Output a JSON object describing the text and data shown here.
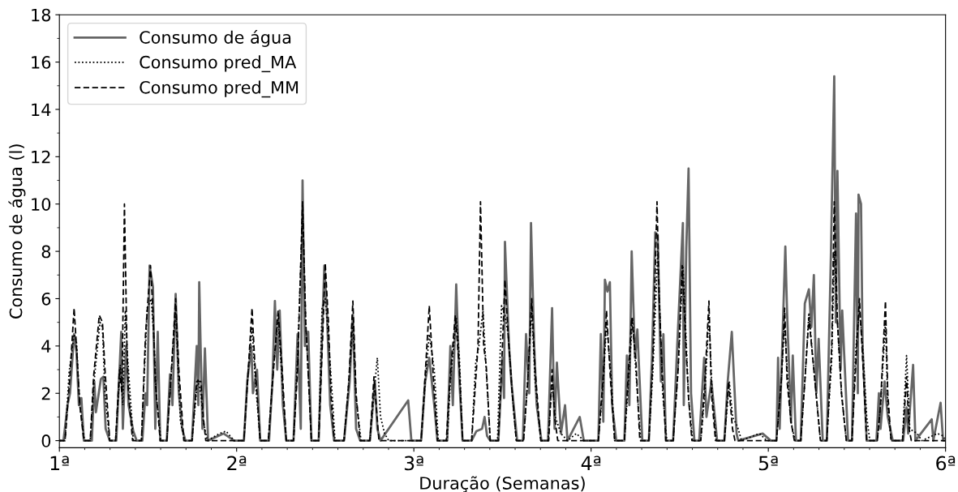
{
  "chart_data": {
    "type": "line",
    "xlabel": "Duração (Semanas)",
    "ylabel": "Consumo de água (l)",
    "xlim": [
      1,
      6
    ],
    "xticks": [
      {
        "value": 1,
        "label": "1ª"
      },
      {
        "value": 2,
        "label": "2ª"
      },
      {
        "value": 3,
        "label": "3ª"
      },
      {
        "value": 4,
        "label": "4ª"
      },
      {
        "value": 5,
        "label": "5ª"
      },
      {
        "value": 6,
        "label": "6ª"
      }
    ],
    "ylim": [
      -0.3,
      18
    ],
    "yticks": [
      0,
      2,
      4,
      6,
      8,
      10,
      12,
      14,
      16,
      18
    ],
    "grid": false,
    "legend": "top left",
    "marker": "none",
    "series": [
      {
        "name": "Consumo de água",
        "color": "#666666",
        "line_style": "solid",
        "x": [
          1.0,
          1.023,
          1.046,
          1.06,
          1.083,
          1.096,
          1.11,
          1.124,
          1.138,
          1.183,
          1.197,
          1.206,
          1.234,
          1.248,
          1.261,
          1.284,
          1.321,
          1.349,
          1.358,
          1.376,
          1.39,
          1.417,
          1.436,
          1.468,
          1.486,
          1.495,
          1.509,
          1.528,
          1.541,
          1.555,
          1.569,
          1.606,
          1.624,
          1.638,
          1.656,
          1.674,
          1.693,
          1.711,
          1.748,
          1.775,
          1.784,
          1.789,
          1.807,
          1.821,
          1.839,
          1.927,
          1.986,
          2.041,
          2.06,
          2.083,
          2.092,
          2.115,
          2.133,
          2.183,
          2.202,
          2.216,
          2.229,
          2.243,
          2.261,
          2.28,
          2.321,
          2.344,
          2.362,
          2.372,
          2.385,
          2.404,
          2.422,
          2.463,
          2.482,
          2.495,
          2.509,
          2.528,
          2.55,
          2.606,
          2.638,
          2.656,
          2.674,
          2.697,
          2.752,
          2.78,
          2.794,
          2.812,
          2.968,
          2.986,
          3.041,
          3.064,
          3.087,
          3.115,
          3.133,
          3.188,
          3.206,
          3.22,
          3.239,
          3.257,
          3.275,
          3.326,
          3.353,
          3.385,
          3.399,
          3.413,
          3.431,
          3.477,
          3.5,
          3.509,
          3.514,
          3.537,
          3.55,
          3.583,
          3.615,
          3.633,
          3.651,
          3.661,
          3.679,
          3.693,
          3.72,
          3.757,
          3.78,
          3.794,
          3.807,
          3.83,
          3.853,
          3.867,
          3.936,
          3.959,
          4.041,
          4.055,
          4.069,
          4.078,
          4.092,
          4.106,
          4.119,
          4.142,
          4.188,
          4.202,
          4.216,
          4.229,
          4.248,
          4.261,
          4.289,
          4.326,
          4.344,
          4.362,
          4.376,
          4.394,
          4.408,
          4.422,
          4.463,
          4.486,
          4.518,
          4.523,
          4.537,
          4.55,
          4.564,
          4.583,
          4.61,
          4.638,
          4.651,
          4.679,
          4.711,
          4.752,
          4.771,
          4.794,
          4.821,
          4.83,
          4.968,
          5.014,
          5.046,
          5.055,
          5.064,
          5.096,
          5.106,
          5.128,
          5.138,
          5.156,
          5.183,
          5.206,
          5.229,
          5.243,
          5.257,
          5.271,
          5.284,
          5.307,
          5.33,
          5.353,
          5.372,
          5.381,
          5.39,
          5.408,
          5.417,
          5.45,
          5.472,
          5.495,
          5.505,
          5.509,
          5.523,
          5.532,
          5.555,
          5.61,
          5.624,
          5.633,
          5.656,
          5.674,
          5.702,
          5.761,
          5.78,
          5.789,
          5.817,
          5.83,
          5.922,
          5.931,
          5.972,
          5.986,
          6.0
        ],
        "values": [
          0,
          0,
          1.5,
          2.0,
          4.5,
          3.8,
          1.5,
          1.8,
          0,
          0,
          2.5,
          1.2,
          2.6,
          2.7,
          0.5,
          0,
          0,
          4.6,
          0.5,
          4.0,
          1.5,
          0.4,
          0,
          0,
          2.0,
          1.5,
          7.4,
          6.5,
          0.5,
          4.6,
          0,
          0,
          2.8,
          1.5,
          6.2,
          2.0,
          0.5,
          0,
          0,
          4.0,
          1.5,
          6.7,
          0.5,
          3.9,
          0,
          0.3,
          0,
          0,
          2.5,
          4.0,
          2.0,
          3.0,
          0,
          0,
          2.5,
          5.9,
          3.0,
          5.5,
          1.5,
          0,
          0,
          4.5,
          0.5,
          11.0,
          4.0,
          4.6,
          0,
          0,
          4.5,
          7.4,
          5.5,
          1.5,
          0,
          0,
          2.5,
          5.3,
          0.5,
          0,
          0,
          2.5,
          0.5,
          0,
          1.7,
          0,
          0,
          2.5,
          3.5,
          1.5,
          0,
          0,
          4.0,
          1.5,
          6.6,
          2.5,
          0,
          0,
          0.4,
          0.5,
          1.0,
          0.2,
          0,
          0,
          3.5,
          1.8,
          8.4,
          4.0,
          2.5,
          0,
          0,
          4.5,
          2.0,
          9.2,
          4.0,
          1.5,
          0,
          0,
          5.6,
          0.5,
          3.3,
          0.3,
          1.5,
          0,
          1.0,
          0,
          0,
          4.5,
          0.8,
          6.8,
          6.3,
          6.7,
          1.5,
          0,
          0,
          3.6,
          1.5,
          8.0,
          3.5,
          4.7,
          0,
          0,
          3.6,
          8.8,
          8.7,
          2.5,
          4.5,
          0,
          0,
          4.0,
          9.2,
          1.5,
          8.1,
          11.5,
          2.0,
          0,
          0,
          3.5,
          1.0,
          2.5,
          0,
          0,
          2.5,
          4.6,
          0.3,
          0,
          0.3,
          0,
          0,
          3.5,
          0.5,
          8.2,
          5.4,
          0.8,
          3.6,
          0,
          0,
          5.8,
          6.4,
          4.8,
          7.0,
          2.0,
          4.3,
          0,
          0,
          7.8,
          15.4,
          5.0,
          11.4,
          3.0,
          5.5,
          0,
          0,
          9.6,
          2.0,
          10.4,
          10.0,
          4.0,
          0,
          0,
          2.0,
          0.5,
          2.5,
          1.0,
          0,
          0,
          1.4,
          0.3,
          3.2,
          0,
          0.9,
          0,
          1.6,
          0,
          0
        ]
      },
      {
        "name": "Consumo pred_MA",
        "color": "#000000",
        "line_style": "dotted",
        "x": [
          1.0,
          1.032,
          1.055,
          1.083,
          1.096,
          1.115,
          1.142,
          1.174,
          1.197,
          1.229,
          1.243,
          1.257,
          1.284,
          1.317,
          1.344,
          1.358,
          1.372,
          1.385,
          1.417,
          1.463,
          1.495,
          1.518,
          1.532,
          1.546,
          1.573,
          1.606,
          1.628,
          1.656,
          1.67,
          1.683,
          1.706,
          1.748,
          1.78,
          1.798,
          1.812,
          1.835,
          1.904,
          1.94,
          1.963,
          1.986,
          2.041,
          2.064,
          2.087,
          2.106,
          2.133,
          2.179,
          2.206,
          2.234,
          2.257,
          2.28,
          2.321,
          2.344,
          2.372,
          2.39,
          2.422,
          2.463,
          2.482,
          2.5,
          2.514,
          2.537,
          2.555,
          2.606,
          2.628,
          2.656,
          2.674,
          2.702,
          2.752,
          2.775,
          2.794,
          2.812,
          2.835,
          2.858,
          3.041,
          3.064,
          3.087,
          3.115,
          3.138,
          3.188,
          3.206,
          3.239,
          3.257,
          3.275,
          3.326,
          3.349,
          3.367,
          3.39,
          3.408,
          3.431,
          3.472,
          3.495,
          3.514,
          3.532,
          3.56,
          3.578,
          3.619,
          3.642,
          3.665,
          3.684,
          3.716,
          3.757,
          3.78,
          3.798,
          3.83,
          3.867,
          3.917,
          3.959,
          4.041,
          4.069,
          4.087,
          4.115,
          4.133,
          4.188,
          4.211,
          4.234,
          4.252,
          4.28,
          4.326,
          4.349,
          4.376,
          4.39,
          4.404,
          4.427,
          4.463,
          4.491,
          4.518,
          4.532,
          4.55,
          4.573,
          4.619,
          4.642,
          4.665,
          4.683,
          4.706,
          4.752,
          4.78,
          4.798,
          4.826,
          4.849,
          4.95,
          4.991,
          5.046,
          5.073,
          5.092,
          5.106,
          5.128,
          5.151,
          5.183,
          5.206,
          5.229,
          5.257,
          5.294,
          5.33,
          5.358,
          5.372,
          5.39,
          5.413,
          5.44,
          5.472,
          5.495,
          5.514,
          5.532,
          5.555,
          5.573,
          5.615,
          5.633,
          5.661,
          5.674,
          5.693,
          5.757,
          5.78,
          5.798,
          5.839,
          5.867,
          5.954,
          5.986,
          6.0
        ],
        "values": [
          0,
          0,
          2.9,
          4.5,
          4.2,
          1.5,
          0,
          0,
          2.6,
          5.0,
          4.8,
          2.0,
          0,
          0,
          3.2,
          1.5,
          5.5,
          3.5,
          0,
          0,
          5.6,
          6.0,
          4.5,
          2.0,
          0,
          0,
          2.5,
          5.6,
          3.0,
          0.8,
          0,
          0,
          2.6,
          2.0,
          0.8,
          0,
          0.3,
          0.4,
          0.2,
          0,
          0,
          2.8,
          4.8,
          2.5,
          0,
          0,
          2.9,
          5.2,
          2.5,
          0,
          0,
          3.5,
          9.7,
          5.0,
          0,
          0,
          5.6,
          6.0,
          4.8,
          2.2,
          0,
          0,
          2.0,
          5.0,
          1.8,
          0,
          0,
          2.0,
          3.5,
          1.0,
          0.3,
          0,
          0,
          2.5,
          4.5,
          3.0,
          0,
          0,
          2.5,
          5.2,
          3.5,
          0,
          0,
          3.3,
          4.0,
          5.5,
          3.0,
          0,
          0,
          5.7,
          5.3,
          4.5,
          1.5,
          0,
          0,
          2.5,
          5.6,
          2.5,
          0,
          0,
          2.5,
          1.0,
          0.3,
          0,
          0.3,
          0,
          0,
          2.5,
          5.0,
          2.5,
          0,
          0,
          2.5,
          5.2,
          3.0,
          0,
          0,
          3.0,
          8.0,
          5.0,
          2.0,
          0,
          0,
          3.0,
          7.4,
          5.0,
          1.8,
          0,
          0,
          2.0,
          5.3,
          2.0,
          0,
          0,
          2.5,
          1.0,
          0.6,
          0,
          0.3,
          0,
          0,
          2.5,
          5.0,
          3.0,
          0.8,
          0,
          0,
          2.5,
          5.4,
          3.0,
          0,
          0,
          3.5,
          8.0,
          5.0,
          2.0,
          0,
          0,
          4.0,
          5.5,
          4.0,
          1.0,
          0,
          0,
          1.5,
          5.0,
          1.5,
          0,
          0,
          3.6,
          0.5,
          0.3,
          0,
          0.3,
          0.2,
          0
        ]
      },
      {
        "name": "Consumo pred_MM",
        "color": "#000000",
        "line_style": "dashed",
        "x": [
          1.0,
          1.032,
          1.06,
          1.083,
          1.096,
          1.115,
          1.138,
          1.174,
          1.193,
          1.225,
          1.243,
          1.257,
          1.284,
          1.317,
          1.339,
          1.353,
          1.367,
          1.381,
          1.39,
          1.413,
          1.463,
          1.486,
          1.514,
          1.528,
          1.541,
          1.569,
          1.606,
          1.624,
          1.656,
          1.674,
          1.702,
          1.748,
          1.775,
          1.798,
          1.812,
          1.826,
          2.041,
          2.064,
          2.087,
          2.101,
          2.133,
          2.179,
          2.206,
          2.234,
          2.257,
          2.28,
          2.321,
          2.344,
          2.372,
          2.39,
          2.422,
          2.463,
          2.486,
          2.5,
          2.518,
          2.532,
          2.55,
          2.606,
          2.633,
          2.656,
          2.674,
          2.697,
          2.752,
          2.775,
          2.803,
          3.041,
          3.064,
          3.087,
          3.115,
          3.133,
          3.183,
          3.206,
          3.234,
          3.257,
          3.275,
          3.326,
          3.362,
          3.376,
          3.394,
          3.408,
          3.431,
          3.477,
          3.5,
          3.514,
          3.532,
          3.555,
          3.578,
          3.619,
          3.642,
          3.665,
          3.684,
          3.716,
          3.761,
          3.78,
          3.794,
          3.812,
          4.041,
          4.069,
          4.087,
          4.11,
          4.133,
          4.188,
          4.211,
          4.229,
          4.252,
          4.275,
          4.326,
          4.349,
          4.372,
          4.385,
          4.404,
          4.422,
          4.463,
          4.491,
          4.514,
          4.532,
          4.55,
          4.569,
          4.619,
          4.642,
          4.665,
          4.679,
          4.702,
          4.752,
          4.775,
          4.798,
          4.812,
          5.046,
          5.073,
          5.092,
          5.106,
          5.128,
          5.147,
          5.183,
          5.206,
          5.229,
          5.257,
          5.294,
          5.33,
          5.358,
          5.372,
          5.39,
          5.413,
          5.44,
          5.472,
          5.495,
          5.514,
          5.532,
          5.555,
          5.615,
          5.633,
          5.661,
          5.674,
          5.693,
          5.757,
          5.78,
          5.794,
          5.807,
          6.0
        ],
        "values": [
          0,
          0,
          2.8,
          5.6,
          4.0,
          1.5,
          0,
          0,
          2.7,
          5.3,
          5.0,
          3.0,
          0,
          0,
          3.0,
          2.0,
          10.0,
          4.0,
          2.0,
          0,
          0,
          4.5,
          7.4,
          5.5,
          2.5,
          0,
          0,
          2.0,
          6.0,
          3.0,
          0,
          0,
          2.5,
          2.5,
          1.0,
          0,
          0,
          2.8,
          5.6,
          3.5,
          0,
          0,
          2.8,
          5.5,
          3.0,
          0,
          0,
          3.0,
          10.1,
          5.0,
          0,
          0,
          4.5,
          7.5,
          5.0,
          2.0,
          0,
          0,
          2.5,
          5.9,
          2.0,
          0,
          0,
          2.7,
          0,
          0,
          2.8,
          5.7,
          2.0,
          0,
          0,
          2.8,
          5.3,
          3.0,
          0,
          0,
          4.0,
          10.1,
          4.0,
          3.2,
          0,
          0,
          4.0,
          6.8,
          4.5,
          2.0,
          0,
          0,
          2.5,
          6.0,
          3.0,
          0,
          0,
          3.0,
          1.0,
          0,
          0,
          2.8,
          5.5,
          2.5,
          0,
          0,
          3.0,
          5.2,
          3.5,
          0,
          0,
          3.5,
          10.1,
          5.8,
          2.5,
          0,
          0,
          3.0,
          7.4,
          4.5,
          1.8,
          0,
          0,
          2.5,
          5.9,
          2.0,
          0,
          0,
          2.5,
          0.5,
          0,
          0,
          2.5,
          5.6,
          2.5,
          0.8,
          0,
          0,
          2.5,
          5.2,
          3.0,
          0,
          0,
          4.0,
          10.1,
          5.0,
          2.0,
          0,
          0,
          3.5,
          6.0,
          3.5,
          0,
          0,
          1.5,
          5.9,
          2.0,
          0,
          0,
          2.7,
          0.5,
          0,
          0
        ]
      }
    ]
  }
}
